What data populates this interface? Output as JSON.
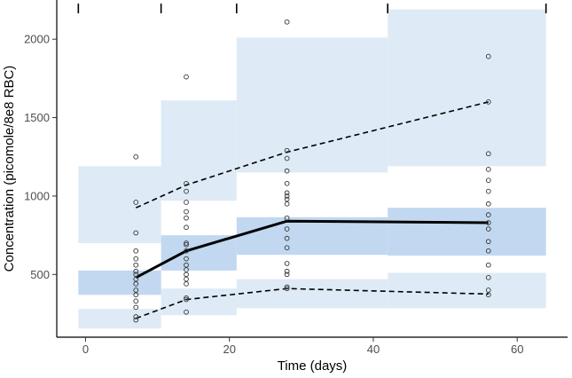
{
  "chart_data": {
    "type": "scatter",
    "title": "",
    "xlabel": "Time (days)",
    "ylabel": "Concentration (picomole/8e8 RBC)",
    "xlim": [
      -4,
      67
    ],
    "ylim": [
      100,
      2250
    ],
    "x_ticks": [
      0,
      20,
      40,
      60
    ],
    "x_tick_labels": [
      "0",
      "20",
      "40",
      "60"
    ],
    "y_ticks": [
      500,
      1000,
      1500,
      2000
    ],
    "y_tick_labels": [
      "500",
      "1000",
      "1500",
      "2000"
    ],
    "grid": false,
    "bin_edges": [
      -1,
      10.5,
      21,
      42,
      64
    ],
    "bands": {
      "p95_outer": [
        {
          "x0": -1,
          "x1": 10.5,
          "y0": 700,
          "y1": 1190
        },
        {
          "x0": 10.5,
          "x1": 21,
          "y0": 970,
          "y1": 1610
        },
        {
          "x0": 21,
          "x1": 42,
          "y0": 1150,
          "y1": 2010
        },
        {
          "x0": 42,
          "x1": 64,
          "y0": 1190,
          "y1": 2190
        }
      ],
      "p50": [
        {
          "x0": -1,
          "x1": 10.5,
          "y0": 370,
          "y1": 525
        },
        {
          "x0": 10.5,
          "x1": 21,
          "y0": 525,
          "y1": 750
        },
        {
          "x0": 21,
          "x1": 42,
          "y0": 625,
          "y1": 865
        },
        {
          "x0": 42,
          "x1": 64,
          "y0": 620,
          "y1": 925
        }
      ],
      "p5_outer": [
        {
          "x0": -1,
          "x1": 10.5,
          "y0": 155,
          "y1": 280
        },
        {
          "x0": 10.5,
          "x1": 21,
          "y0": 240,
          "y1": 410
        },
        {
          "x0": 21,
          "x1": 42,
          "y0": 285,
          "y1": 470
        },
        {
          "x0": 42,
          "x1": 64,
          "y0": 285,
          "y1": 510
        }
      ]
    },
    "band_colors": {
      "outer": "#deeaf6",
      "median": "#c1d8f0"
    },
    "series": [
      {
        "name": "observed median",
        "style": "solid",
        "x": [
          7,
          14,
          28,
          56
        ],
        "y": [
          480,
          650,
          840,
          830
        ]
      },
      {
        "name": "observed 95th percentile",
        "style": "dashed",
        "x": [
          7,
          14,
          28,
          56
        ],
        "y": [
          925,
          1070,
          1280,
          1600
        ]
      },
      {
        "name": "observed 5th percentile",
        "style": "dashed",
        "x": [
          7,
          14,
          28,
          56
        ],
        "y": [
          220,
          340,
          410,
          375
        ]
      }
    ],
    "observations": [
      {
        "x": 7,
        "y": [
          1250,
          960,
          765,
          650,
          600,
          560,
          520,
          500,
          470,
          440,
          400,
          370,
          330,
          290,
          230,
          210
        ]
      },
      {
        "x": 14,
        "y": [
          1760,
          1080,
          1030,
          960,
          900,
          860,
          800,
          700,
          690,
          650,
          600,
          560,
          530,
          500,
          470,
          440,
          350,
          340,
          260
        ]
      },
      {
        "x": 28,
        "y": [
          2110,
          1290,
          1240,
          1160,
          1080,
          1020,
          1000,
          980,
          950,
          860,
          790,
          730,
          670,
          570,
          520,
          500,
          420,
          410
        ]
      },
      {
        "x": 56,
        "y": [
          1890,
          1600,
          1270,
          1170,
          1100,
          1030,
          950,
          880,
          830,
          790,
          710,
          650,
          560,
          480,
          400,
          370
        ]
      }
    ]
  }
}
